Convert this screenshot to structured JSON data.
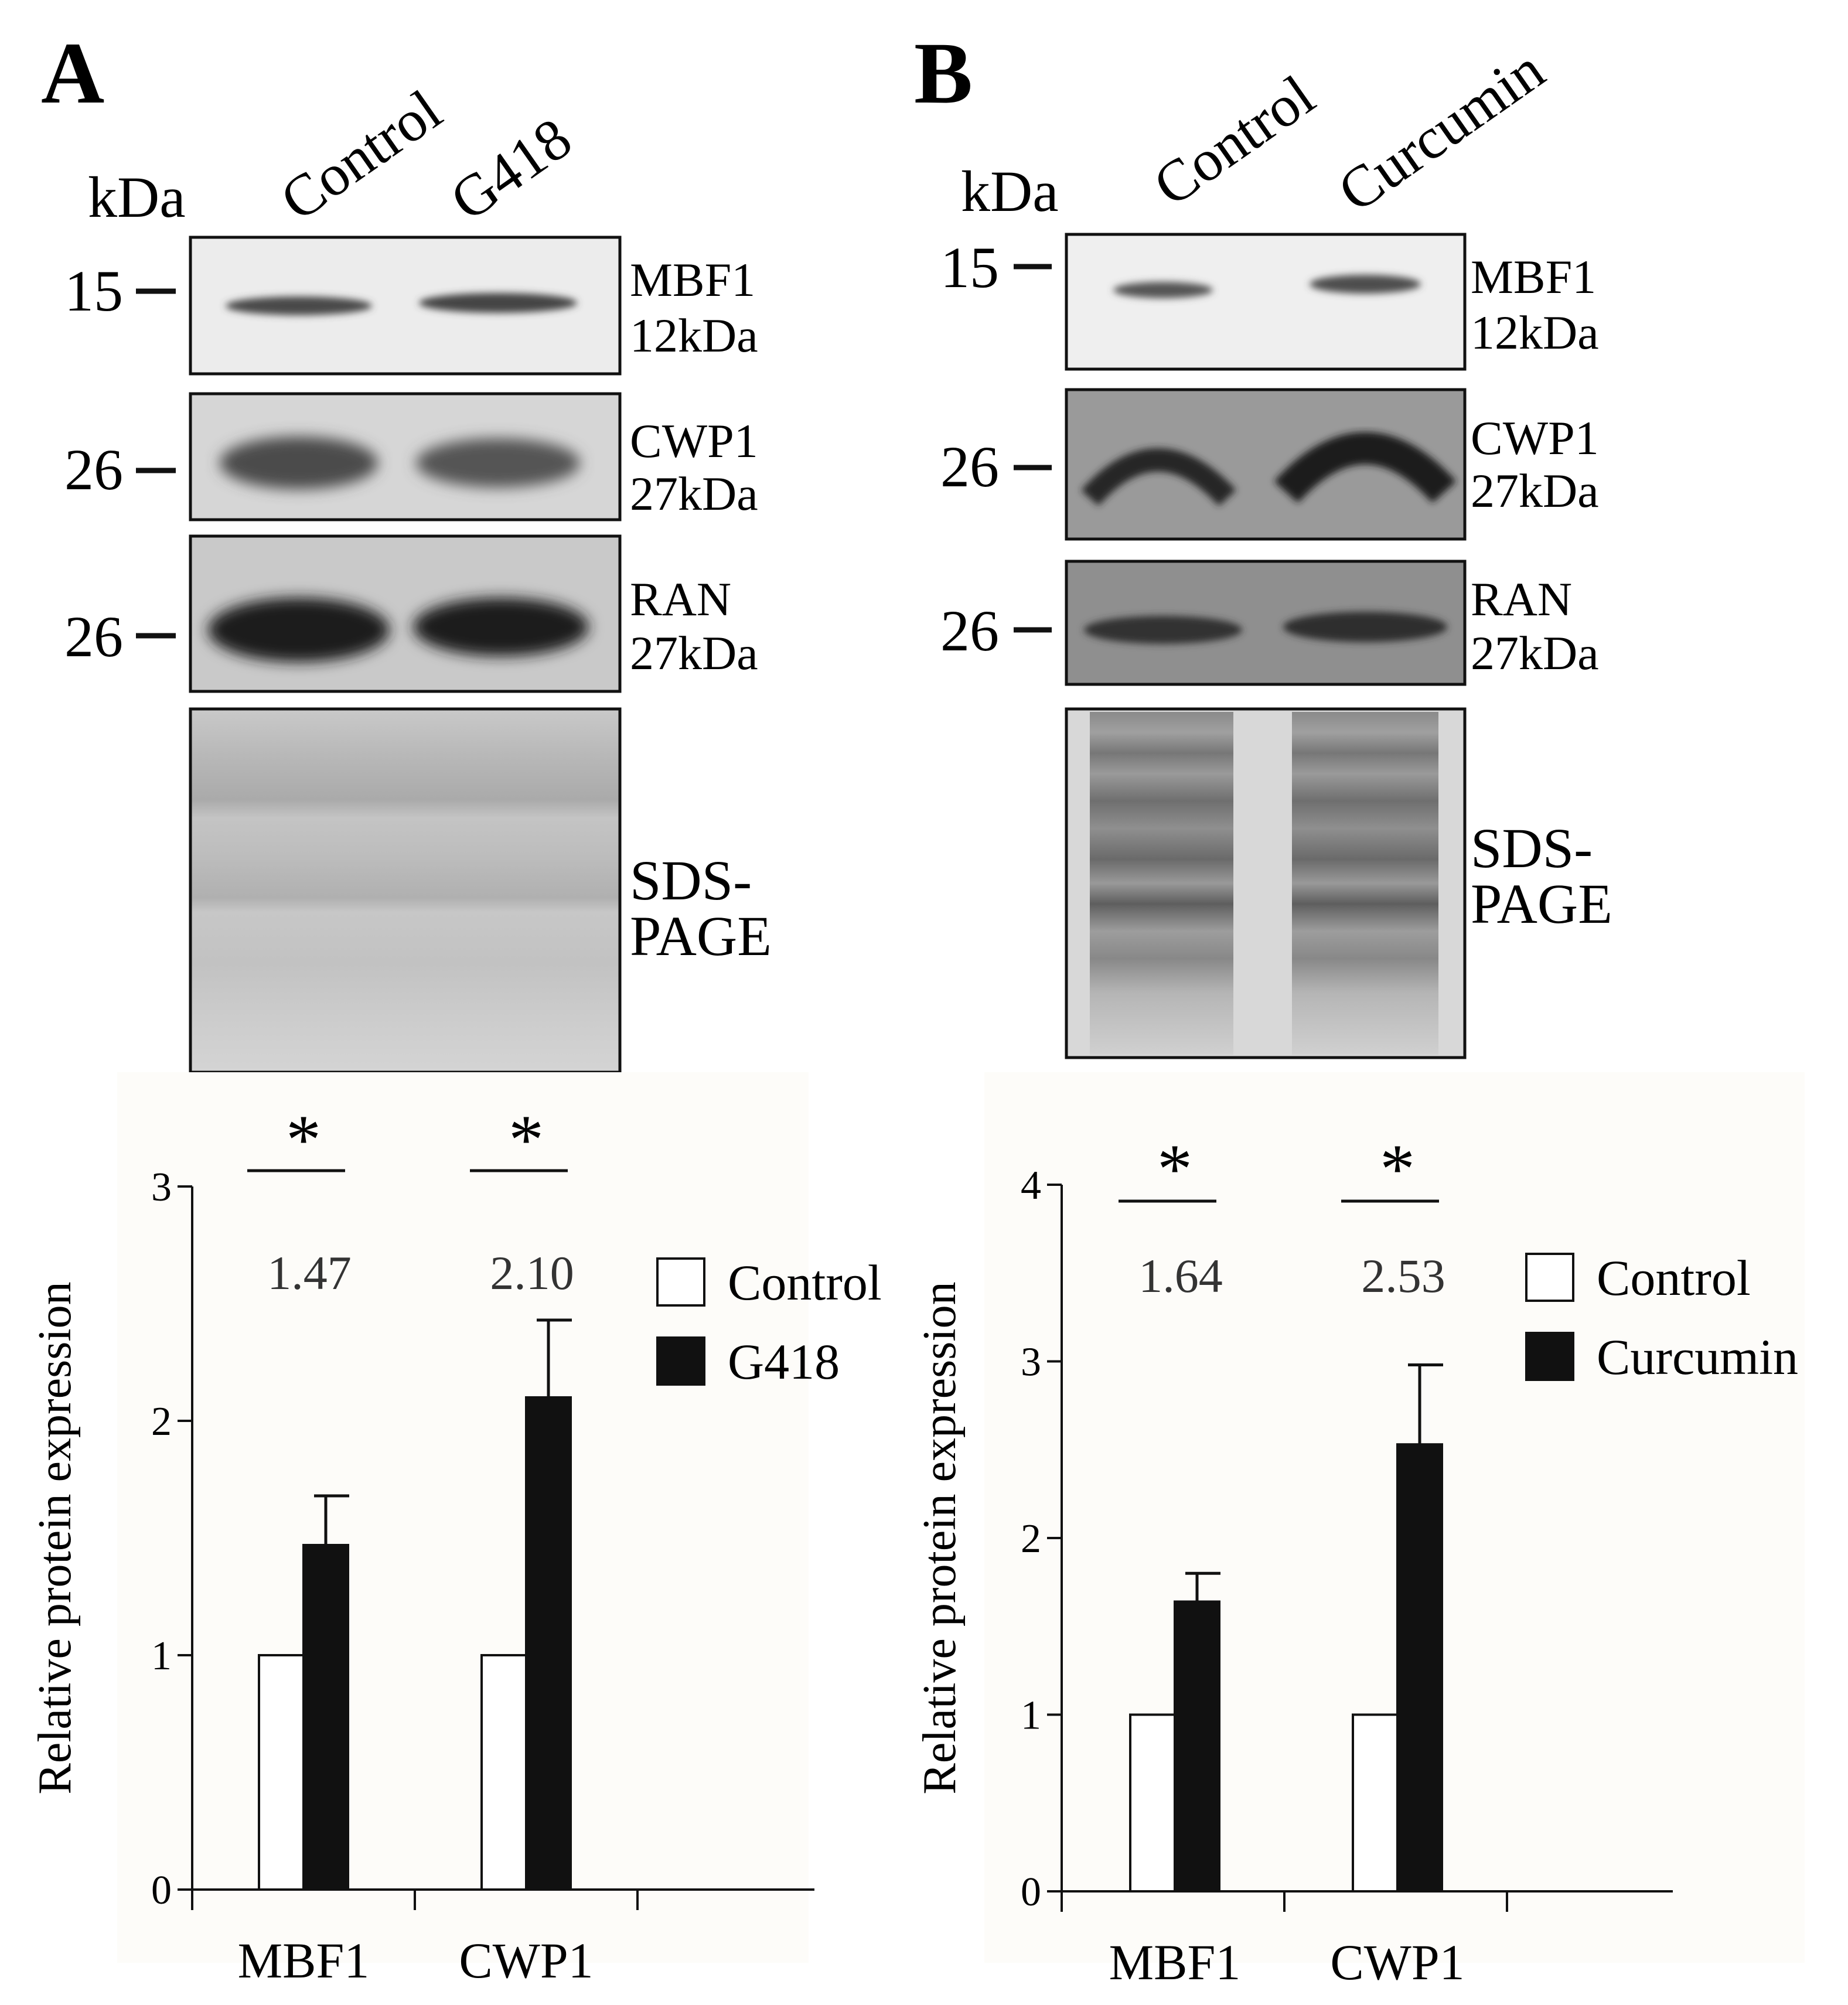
{
  "panels": [
    {
      "letter": "A",
      "kda_label": "kDa",
      "lanes": [
        "Control",
        "G418"
      ],
      "blots": [
        {
          "marker": "15",
          "name": "MBF1",
          "size": "12kDa"
        },
        {
          "marker": "26",
          "name": "CWP1",
          "size": "27kDa"
        },
        {
          "marker": "26",
          "name": "RAN",
          "size": "27kDa"
        },
        {
          "marker": "",
          "name": "SDS-",
          "size": "PAGE"
        }
      ]
    },
    {
      "letter": "B",
      "kda_label": "kDa",
      "lanes": [
        "Control",
        "Curcumin"
      ],
      "blots": [
        {
          "marker": "15",
          "name": "MBF1",
          "size": "12kDa"
        },
        {
          "marker": "26",
          "name": "CWP1",
          "size": "27kDa"
        },
        {
          "marker": "26",
          "name": "RAN",
          "size": "27kDa"
        },
        {
          "marker": "",
          "name": "SDS-",
          "size": "PAGE"
        }
      ]
    }
  ],
  "chart_data": [
    {
      "type": "bar",
      "ylabel": "Relative protein expression",
      "ylim": [
        0,
        3
      ],
      "yticks": [
        "0",
        "1",
        "2",
        "3"
      ],
      "categories": [
        "MBF1",
        "CWP1"
      ],
      "series": [
        {
          "name": "Control",
          "values": [
            1.0,
            1.0
          ],
          "color": "#ffffff"
        },
        {
          "name": "G418",
          "values": [
            1.47,
            2.1
          ],
          "errors": [
            0.21,
            0.33
          ],
          "color": "#111111"
        }
      ],
      "value_labels": [
        "1.47",
        "2.10"
      ],
      "significance": [
        "*",
        "*"
      ],
      "legend_position": "top-right"
    },
    {
      "type": "bar",
      "ylabel": "Relative protein expression",
      "ylim": [
        0,
        4
      ],
      "yticks": [
        "0",
        "1",
        "2",
        "3",
        "4"
      ],
      "categories": [
        "MBF1",
        "CWP1"
      ],
      "series": [
        {
          "name": "Control",
          "values": [
            1.0,
            1.0
          ],
          "color": "#ffffff"
        },
        {
          "name": "Curcumin",
          "values": [
            1.64,
            2.53
          ],
          "errors": [
            0.16,
            0.45
          ],
          "color": "#111111"
        }
      ],
      "value_labels": [
        "1.64",
        "2.53"
      ],
      "significance": [
        "*",
        "*"
      ],
      "legend_position": "top-right"
    }
  ]
}
